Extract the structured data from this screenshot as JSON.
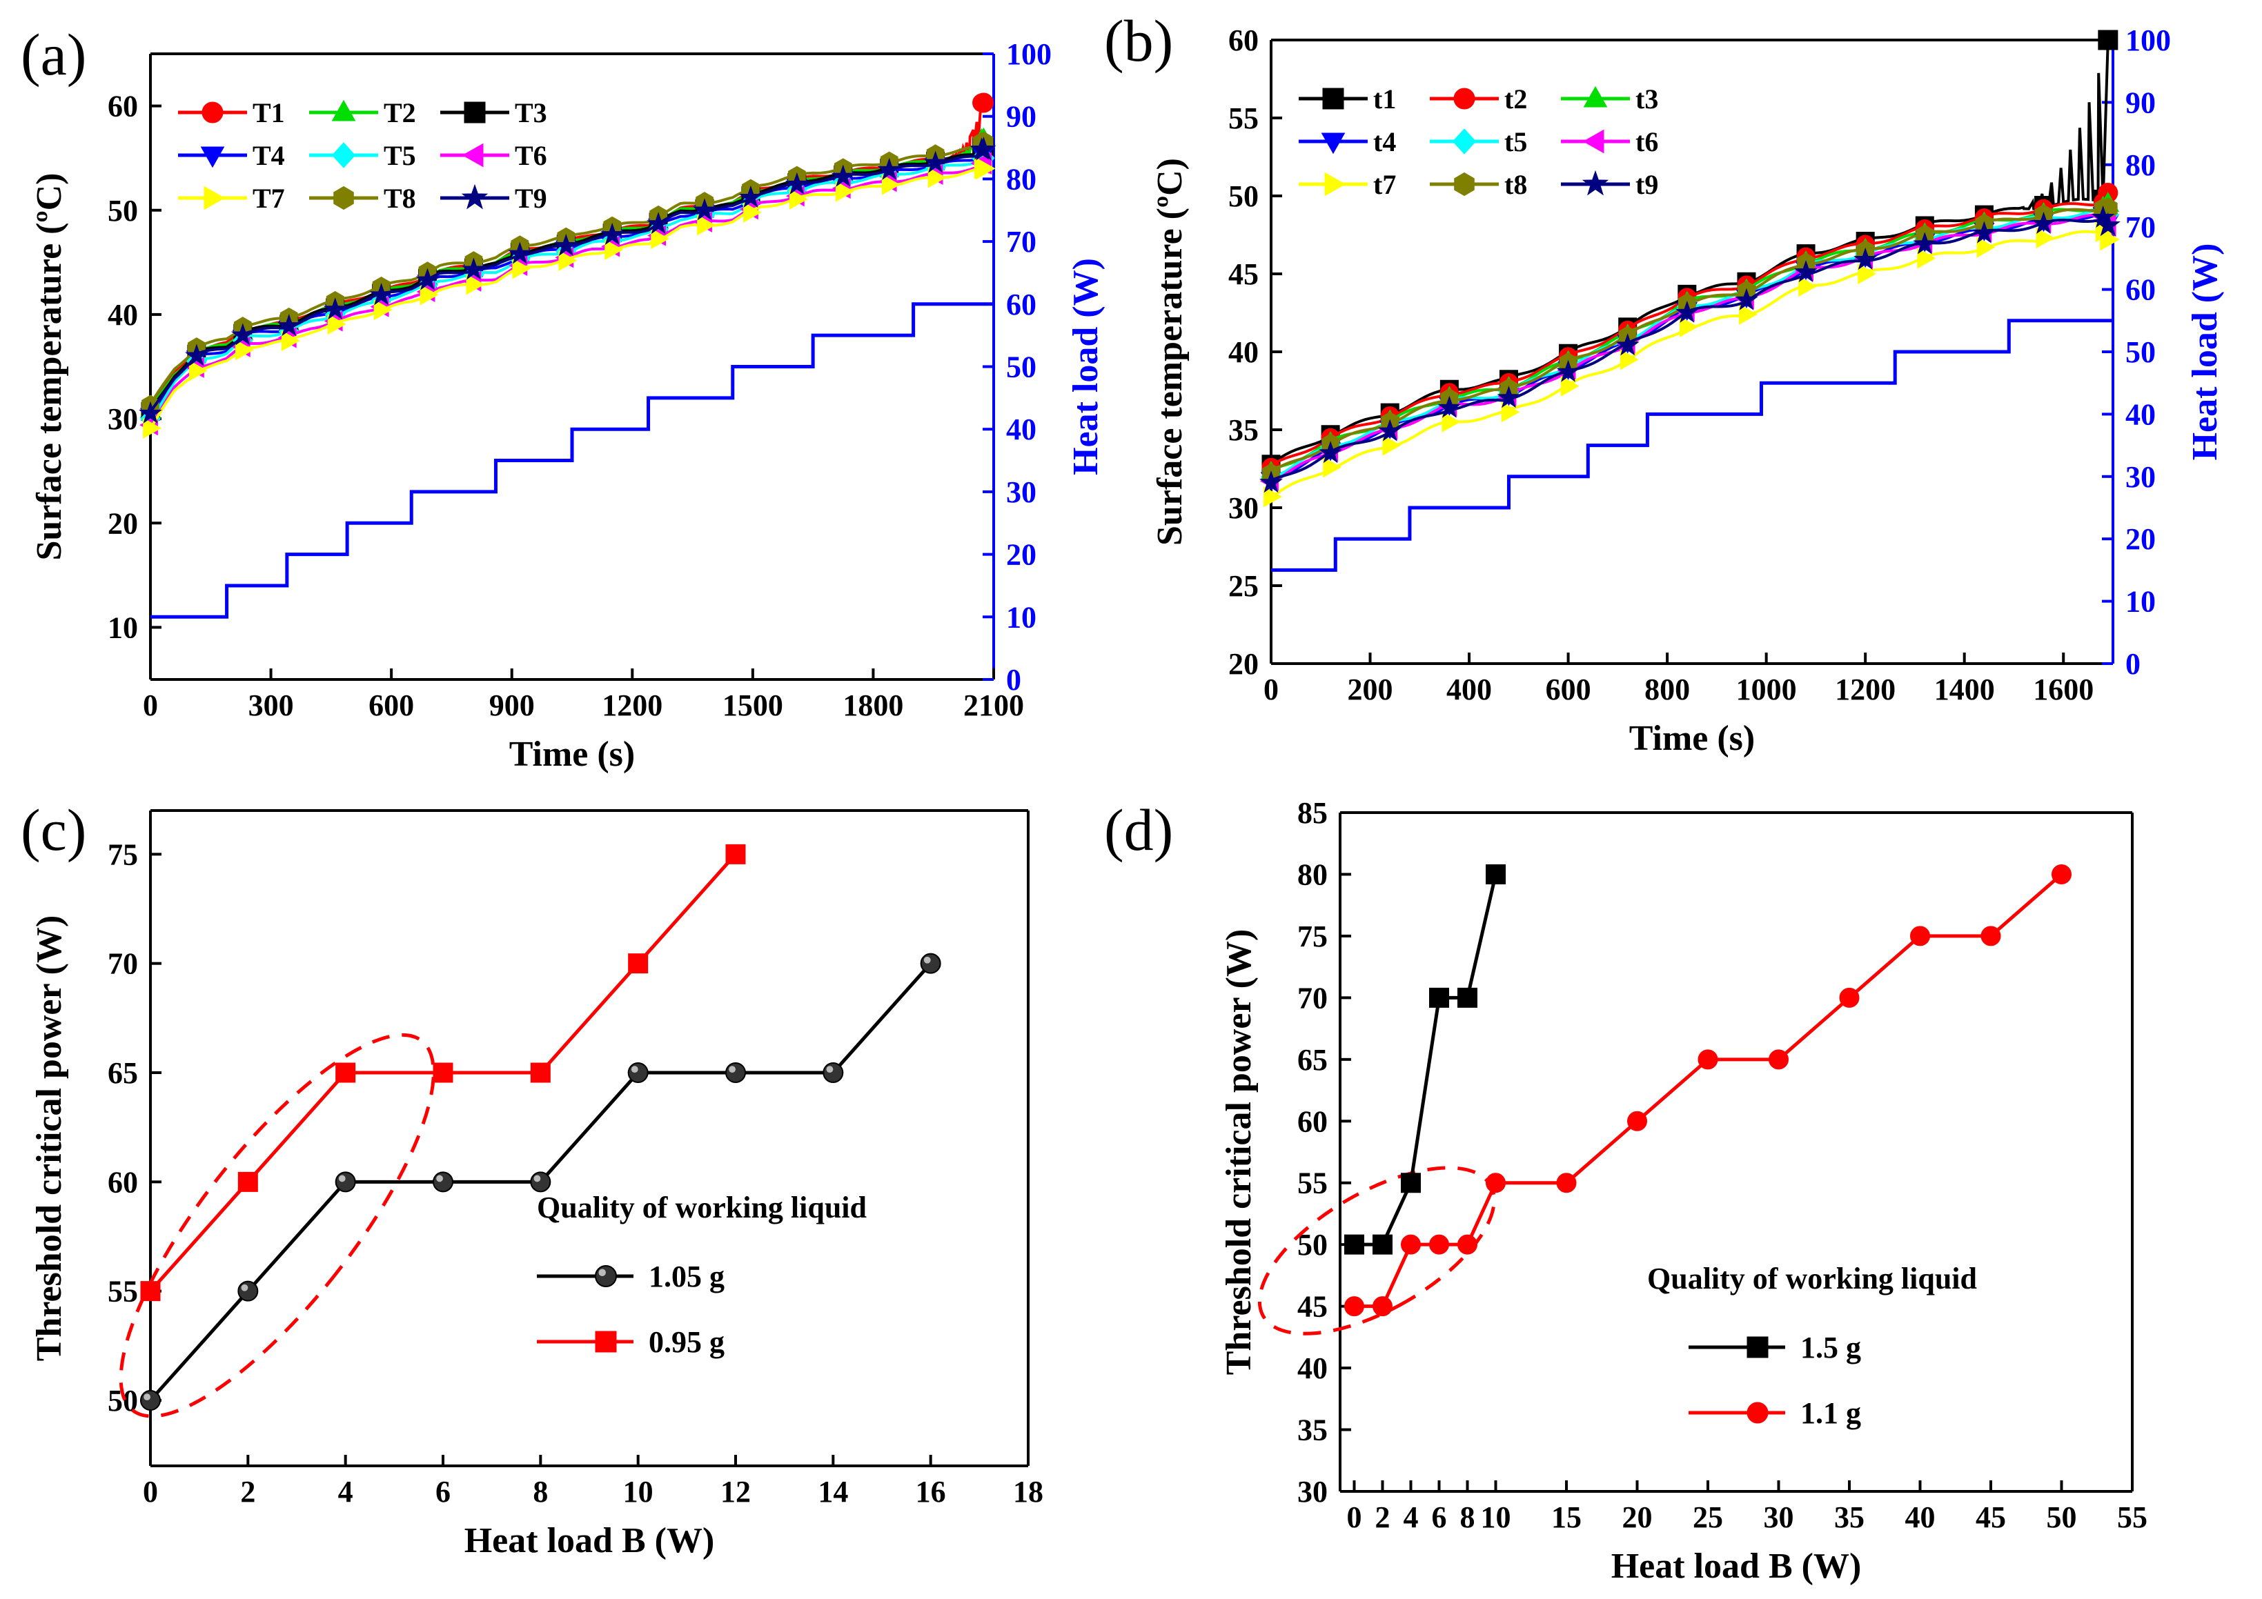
{
  "figure": {
    "panels": [
      {
        "id": "a",
        "label": "(a)"
      },
      {
        "id": "b",
        "label": "(b)"
      },
      {
        "id": "c",
        "label": "(c)"
      },
      {
        "id": "d",
        "label": "(d)"
      }
    ]
  },
  "chart_data": [
    {
      "id": "a",
      "type": "line",
      "panel_label": "(a)",
      "xlabel": "Time (s)",
      "ylabel": "Surface temperature (ºC)",
      "y2label": "Heat load (W)",
      "xlim": [
        0,
        2100
      ],
      "ylim": [
        5,
        65
      ],
      "y2lim": [
        0,
        100
      ],
      "xticks": [
        0,
        300,
        600,
        900,
        1200,
        1500,
        1800,
        2100
      ],
      "yticks": [
        10,
        20,
        30,
        40,
        50,
        60
      ],
      "y2ticks": [
        0,
        10,
        20,
        30,
        40,
        50,
        60,
        70,
        80,
        90,
        100
      ],
      "legend_position": "top-left",
      "legend_cols": 3,
      "temperature_base": [
        [
          0,
          30.5
        ],
        [
          60,
          34
        ],
        [
          120,
          36.2
        ],
        [
          190,
          36.8
        ],
        [
          240,
          38.3
        ],
        [
          340,
          38.8
        ],
        [
          400,
          39.8
        ],
        [
          490,
          40.8
        ],
        [
          560,
          41.7
        ],
        [
          650,
          42.6
        ],
        [
          720,
          43.8
        ],
        [
          860,
          44.6
        ],
        [
          920,
          45.8
        ],
        [
          1040,
          46.6
        ],
        [
          1100,
          47.3
        ],
        [
          1240,
          48.2
        ],
        [
          1320,
          49.7
        ],
        [
          1450,
          50.3
        ],
        [
          1520,
          51.7
        ],
        [
          1650,
          52.8
        ],
        [
          1780,
          53.5
        ],
        [
          1900,
          54.2
        ],
        [
          2000,
          54.8
        ],
        [
          2060,
          55.2
        ]
      ],
      "series": [
        {
          "name": "T1",
          "color": "#ff0000",
          "marker": "circle",
          "offset": 0.4,
          "tail": 60.3
        },
        {
          "name": "T2",
          "color": "#00dd00",
          "marker": "triangle-up",
          "offset": 0.3,
          "tail": 56.8
        },
        {
          "name": "T3",
          "color": "#000000",
          "marker": "square",
          "offset": 0.2,
          "tail": 56.0
        },
        {
          "name": "T4",
          "color": "#0000ff",
          "marker": "triangle-down",
          "offset": -0.2,
          "tail": 55.4
        },
        {
          "name": "T5",
          "color": "#00ffff",
          "marker": "diamond",
          "offset": -0.5,
          "tail": 55.0
        },
        {
          "name": "T6",
          "color": "#ff00ff",
          "marker": "triangle-left",
          "offset": -1.1,
          "tail": 54.5
        },
        {
          "name": "T7",
          "color": "#ffff00",
          "marker": "triangle-right",
          "offset": -1.4,
          "tail": 54.0
        },
        {
          "name": "T8",
          "color": "#808000",
          "marker": "hexagon",
          "offset": 0.8,
          "tail": 56.5
        },
        {
          "name": "T9",
          "color": "#000080",
          "marker": "star",
          "offset": 0.0,
          "tail": 55.8
        }
      ],
      "heat_load": {
        "color": "#0000ff",
        "steps": [
          [
            0,
            10
          ],
          [
            190,
            15
          ],
          [
            340,
            20
          ],
          [
            490,
            25
          ],
          [
            650,
            30
          ],
          [
            860,
            35
          ],
          [
            1050,
            40
          ],
          [
            1240,
            45
          ],
          [
            1450,
            50
          ],
          [
            1650,
            55
          ],
          [
            1900,
            60
          ],
          [
            2100,
            60
          ]
        ]
      }
    },
    {
      "id": "b",
      "type": "line",
      "panel_label": "(b)",
      "xlabel": "Time (s)",
      "ylabel": "Surface temperature (ºC)",
      "y2label": "Heat load (W)",
      "xlim": [
        0,
        1700
      ],
      "ylim": [
        20,
        60
      ],
      "y2lim": [
        0,
        100
      ],
      "xticks": [
        0,
        200,
        400,
        600,
        800,
        1000,
        1200,
        1400,
        1600
      ],
      "yticks": [
        20,
        25,
        30,
        35,
        40,
        45,
        50,
        55,
        60
      ],
      "y2ticks": [
        0,
        10,
        20,
        30,
        40,
        50,
        60,
        70,
        80,
        90,
        100
      ],
      "legend_position": "top-left",
      "legend_cols": 3,
      "temperature_base": [
        [
          0,
          32.3
        ],
        [
          120,
          34.2
        ],
        [
          240,
          35.6
        ],
        [
          360,
          37.1
        ],
        [
          470,
          37.6
        ],
        [
          600,
          39.4
        ],
        [
          720,
          41.1
        ],
        [
          840,
          43.2
        ],
        [
          960,
          44.0
        ],
        [
          1080,
          45.8
        ],
        [
          1200,
          46.6
        ],
        [
          1320,
          47.6
        ],
        [
          1440,
          48.3
        ],
        [
          1560,
          48.9
        ],
        [
          1680,
          49.3
        ]
      ],
      "series": [
        {
          "name": "t1",
          "color": "#000000",
          "marker": "square",
          "offset": 0.5,
          "tail": 60.0
        },
        {
          "name": "t2",
          "color": "#ff0000",
          "marker": "circle",
          "offset": 0.3,
          "tail": 50.2
        },
        {
          "name": "t3",
          "color": "#00dd00",
          "marker": "triangle-up",
          "offset": 0.0,
          "tail": 49.5
        },
        {
          "name": "t4",
          "color": "#0000ff",
          "marker": "triangle-down",
          "offset": -0.5,
          "tail": 48.3
        },
        {
          "name": "t5",
          "color": "#00ffff",
          "marker": "diamond",
          "offset": -0.3,
          "tail": 48.8
        },
        {
          "name": "t6",
          "color": "#ff00ff",
          "marker": "triangle-left",
          "offset": -0.6,
          "tail": 48.1
        },
        {
          "name": "t7",
          "color": "#ffff00",
          "marker": "triangle-right",
          "offset": -1.6,
          "tail": 47.2
        },
        {
          "name": "t8",
          "color": "#808000",
          "marker": "hexagon",
          "offset": -0.1,
          "tail": 49.2
        },
        {
          "name": "t9",
          "color": "#000080",
          "marker": "star",
          "offset": -0.7,
          "tail": 48.1
        }
      ],
      "heat_load": {
        "color": "#0000ff",
        "steps": [
          [
            0,
            15
          ],
          [
            130,
            20
          ],
          [
            280,
            25
          ],
          [
            480,
            30
          ],
          [
            640,
            35
          ],
          [
            760,
            40
          ],
          [
            990,
            45
          ],
          [
            1260,
            50
          ],
          [
            1490,
            55
          ],
          [
            1700,
            55
          ]
        ]
      }
    },
    {
      "id": "c",
      "type": "line",
      "panel_label": "(c)",
      "xlabel": "Heat load B (W)",
      "ylabel": "Threshold critical power (W)",
      "xlim": [
        0,
        18
      ],
      "ylim": [
        47,
        77
      ],
      "xticks": [
        0,
        2,
        4,
        6,
        8,
        10,
        12,
        14,
        16,
        18
      ],
      "yticks": [
        50,
        55,
        60,
        65,
        70,
        75
      ],
      "legend_title": "Quality of working liquid",
      "legend_position": "center-right",
      "series": [
        {
          "name": "1.05 g",
          "color": "#000000",
          "marker": "sphere",
          "x": [
            0,
            2,
            4,
            6,
            8,
            10,
            12,
            14,
            16
          ],
          "y": [
            50,
            55,
            60,
            60,
            60,
            65,
            65,
            65,
            70
          ]
        },
        {
          "name": "0.95 g",
          "color": "#ff0000",
          "marker": "square",
          "x": [
            0,
            2,
            4,
            6,
            8,
            10,
            12
          ],
          "y": [
            55,
            60,
            65,
            65,
            65,
            70,
            75
          ]
        }
      ],
      "annotation": "red dashed ellipse around first points"
    },
    {
      "id": "d",
      "type": "line",
      "panel_label": "(d)",
      "xlabel": "Heat load B (W)",
      "ylabel": "Threshold critical power (W)",
      "xlim": [
        -1,
        55
      ],
      "ylim": [
        30,
        85
      ],
      "xticks": [
        0,
        2,
        4,
        6,
        8,
        10,
        15,
        20,
        25,
        30,
        35,
        40,
        45,
        50,
        55
      ],
      "xtick_labels": [
        "0",
        "2",
        "4",
        "6",
        "8",
        "10",
        "15",
        "20",
        "25",
        "30",
        "35",
        "40",
        "45",
        "50",
        "55"
      ],
      "yticks": [
        30,
        35,
        40,
        45,
        50,
        55,
        60,
        65,
        70,
        75,
        80,
        85
      ],
      "legend_title": "Quality of working liquid",
      "legend_position": "bottom-center",
      "series": [
        {
          "name": "1.5 g",
          "color": "#000000",
          "marker": "square",
          "x": [
            0,
            2,
            4,
            6,
            8,
            10
          ],
          "y": [
            50,
            50,
            55,
            70,
            70,
            80
          ]
        },
        {
          "name": "1.1 g",
          "color": "#ff0000",
          "marker": "circle",
          "x": [
            0,
            2,
            4,
            6,
            8,
            10,
            15,
            20,
            25,
            30,
            35,
            40,
            45,
            50
          ],
          "y": [
            45,
            45,
            50,
            50,
            50,
            55,
            55,
            60,
            65,
            65,
            70,
            75,
            75,
            80
          ]
        }
      ],
      "annotation": "red dashed ellipse around first points"
    }
  ]
}
